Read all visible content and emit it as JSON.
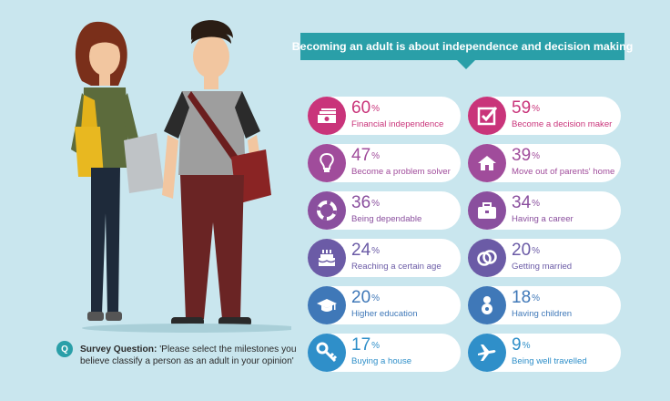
{
  "banner": "Becoming an adult is about independence and decision making",
  "milestones": [
    {
      "percent": "60",
      "label": "Financial independence",
      "color": "#c9347a",
      "icon": "money-icon"
    },
    {
      "percent": "59",
      "label": "Become a decision maker",
      "color": "#c9347a",
      "icon": "checkbox-icon"
    },
    {
      "percent": "47",
      "label": "Become a problem solver",
      "color": "#a04c9b",
      "icon": "lightbulb-icon"
    },
    {
      "percent": "39",
      "label": "Move out of parents' home",
      "color": "#a04c9b",
      "icon": "house-icon"
    },
    {
      "percent": "36",
      "label": "Being dependable",
      "color": "#8a4f9e",
      "icon": "lifebuoy-icon"
    },
    {
      "percent": "34",
      "label": "Having a career",
      "color": "#8a4f9e",
      "icon": "briefcase-icon"
    },
    {
      "percent": "24",
      "label": "Reaching a certain age",
      "color": "#6b5ba6",
      "icon": "birthday-cake-icon"
    },
    {
      "percent": "20",
      "label": "Getting married",
      "color": "#6b5ba6",
      "icon": "wedding-rings-icon"
    },
    {
      "percent": "20",
      "label": "Higher education",
      "color": "#3f78b8",
      "icon": "graduation-cap-icon"
    },
    {
      "percent": "18",
      "label": "Having children",
      "color": "#3f78b8",
      "icon": "baby-icon"
    },
    {
      "percent": "17",
      "label": "Buying a house",
      "color": "#2f8fc9",
      "icon": "key-icon"
    },
    {
      "percent": "9",
      "label": "Being well travelled",
      "color": "#2f8fc9",
      "icon": "airplane-icon"
    }
  ],
  "percent_sign": "%",
  "survey": {
    "badge": "Q",
    "lead": "Survey Question:",
    "text": "'Please select the milestones you believe classify a person as an adult in your opinion'"
  }
}
